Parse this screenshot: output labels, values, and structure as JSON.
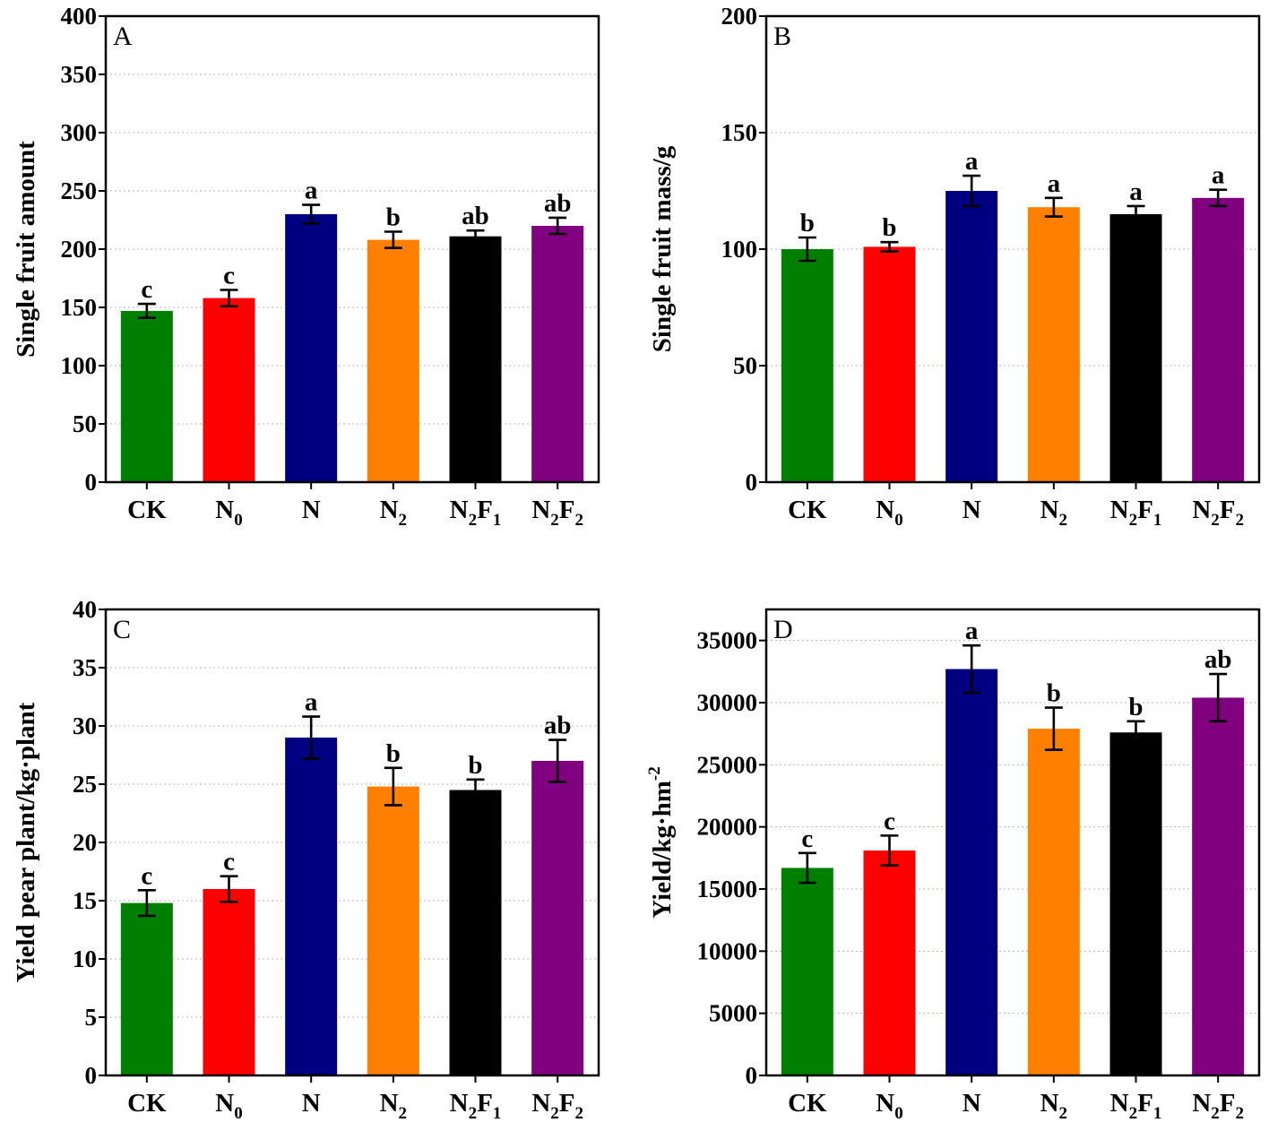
{
  "categories": [
    {
      "base": "CK",
      "parts": [
        {
          "t": "CK",
          "sub": false
        }
      ]
    },
    {
      "base": "N0",
      "parts": [
        {
          "t": "N",
          "sub": false
        },
        {
          "t": "0",
          "sub": true
        }
      ]
    },
    {
      "base": "N",
      "parts": [
        {
          "t": "N",
          "sub": false
        }
      ]
    },
    {
      "base": "N2",
      "parts": [
        {
          "t": "N",
          "sub": false
        },
        {
          "t": "2",
          "sub": true
        }
      ]
    },
    {
      "base": "N2F1",
      "parts": [
        {
          "t": "N",
          "sub": false
        },
        {
          "t": "2",
          "sub": true
        },
        {
          "t": "F",
          "sub": false
        },
        {
          "t": "1",
          "sub": true
        }
      ]
    },
    {
      "base": "N2F2",
      "parts": [
        {
          "t": "N",
          "sub": false
        },
        {
          "t": "2",
          "sub": true
        },
        {
          "t": "F",
          "sub": false
        },
        {
          "t": "2",
          "sub": true
        }
      ]
    }
  ],
  "colors": [
    "#007f00",
    "#ff0000",
    "#000080",
    "#ff8000",
    "#000000",
    "#800080"
  ],
  "chart_data": [
    {
      "type": "bar",
      "panel": "A",
      "ylabel": "Single fruit amount",
      "ylim": [
        0,
        400
      ],
      "yticks": [
        0,
        50,
        100,
        150,
        200,
        250,
        300,
        350,
        400
      ],
      "categories": [
        "CK",
        "N0",
        "N",
        "N2",
        "N2F1",
        "N2F2"
      ],
      "values": [
        147,
        158,
        230,
        208,
        211,
        220
      ],
      "errors": [
        6,
        7,
        8,
        7,
        5,
        7
      ],
      "significance": [
        "c",
        "c",
        "a",
        "b",
        "ab",
        "ab"
      ],
      "grid": true
    },
    {
      "type": "bar",
      "panel": "B",
      "ylabel": "Single fruit mass/g",
      "ylim": [
        0,
        200
      ],
      "yticks": [
        0,
        50,
        100,
        150,
        200
      ],
      "categories": [
        "CK",
        "N0",
        "N",
        "N2",
        "N2F1",
        "N2F2"
      ],
      "values": [
        100,
        101,
        125,
        118,
        115,
        122
      ],
      "errors": [
        5,
        2,
        6.5,
        4,
        3.5,
        3.5
      ],
      "significance": [
        "b",
        "b",
        "a",
        "a",
        "a",
        "a"
      ],
      "grid": true
    },
    {
      "type": "bar",
      "panel": "C",
      "ylabel": "Yield pear plant/kg·plant",
      "ylim": [
        0,
        40
      ],
      "yticks": [
        0,
        5,
        10,
        15,
        20,
        25,
        30,
        35,
        40
      ],
      "categories": [
        "CK",
        "N0",
        "N",
        "N2",
        "N2F1",
        "N2F2"
      ],
      "values": [
        14.8,
        16.0,
        29.0,
        24.8,
        24.5,
        27.0
      ],
      "errors": [
        1.1,
        1.1,
        1.8,
        1.6,
        0.9,
        1.8
      ],
      "significance": [
        "c",
        "c",
        "a",
        "b",
        "b",
        "ab"
      ],
      "grid": true
    },
    {
      "type": "bar",
      "panel": "D",
      "ylabel": "Yield/kg·hm",
      "ylabel_sup": "-2",
      "ylim": [
        0,
        37500
      ],
      "yticks": [
        0,
        5000,
        10000,
        15000,
        20000,
        25000,
        30000,
        35000
      ],
      "categories": [
        "CK",
        "N0",
        "N",
        "N2",
        "N2F1",
        "N2F2"
      ],
      "values": [
        16700,
        18100,
        32700,
        27900,
        27600,
        30400
      ],
      "errors": [
        1200,
        1200,
        1900,
        1700,
        900,
        1900
      ],
      "significance": [
        "c",
        "c",
        "a",
        "b",
        "b",
        "ab"
      ],
      "grid": true
    }
  ]
}
